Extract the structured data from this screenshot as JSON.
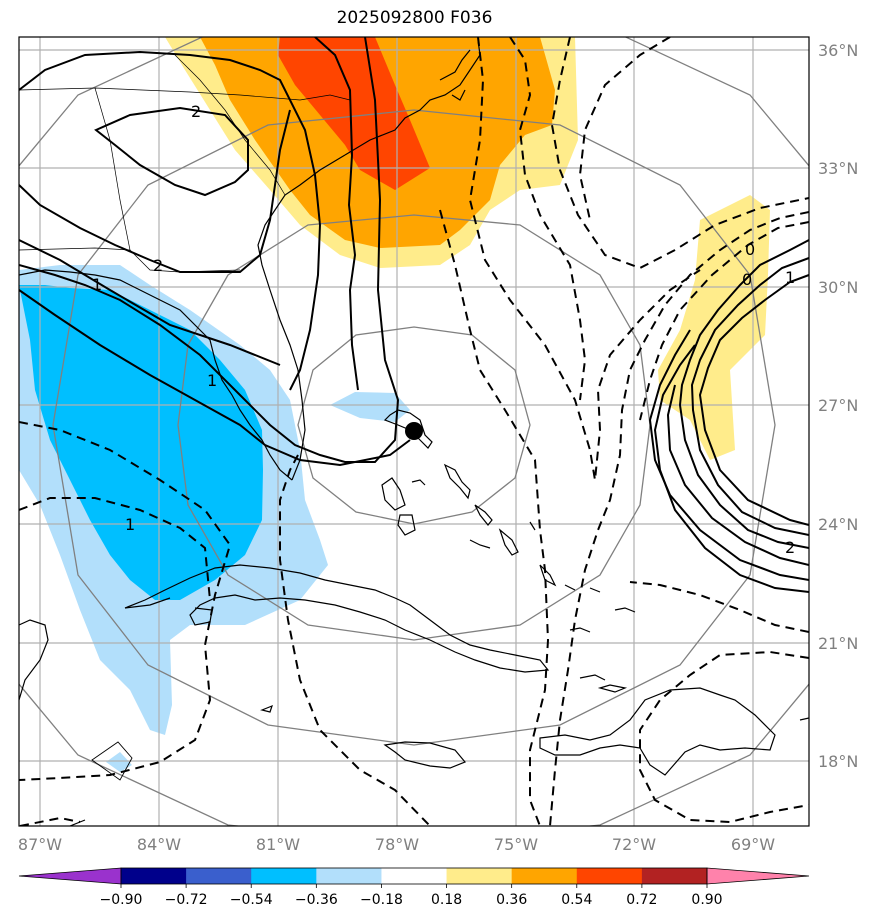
{
  "title": "2025092800 F036",
  "lat_labels": [
    "36°N",
    "33°N",
    "30°N",
    "27°N",
    "24°N",
    "21°N",
    "18°N"
  ],
  "lon_labels": [
    "87°W",
    "84°W",
    "81°W",
    "78°W",
    "75°W",
    "72°W",
    "69°W"
  ],
  "colorbar": {
    "labels": [
      "−0.90",
      "−0.72",
      "−0.54",
      "−0.36",
      "−0.18",
      "0.18",
      "0.36",
      "0.54",
      "0.72",
      "0.90"
    ],
    "colors": [
      "#9a32cd",
      "#00008b",
      "#3a5fcd",
      "#00bfff",
      "#b2dffb",
      "#ffffff",
      "#ffec8b",
      "#ffa500",
      "#ff4500",
      "#b22222",
      "#ff82ab"
    ]
  },
  "contour_labels": [
    "2",
    "2",
    "1",
    "1",
    "1",
    "0",
    "0",
    "1",
    "2"
  ],
  "storm_center": "storm-center-marker"
}
